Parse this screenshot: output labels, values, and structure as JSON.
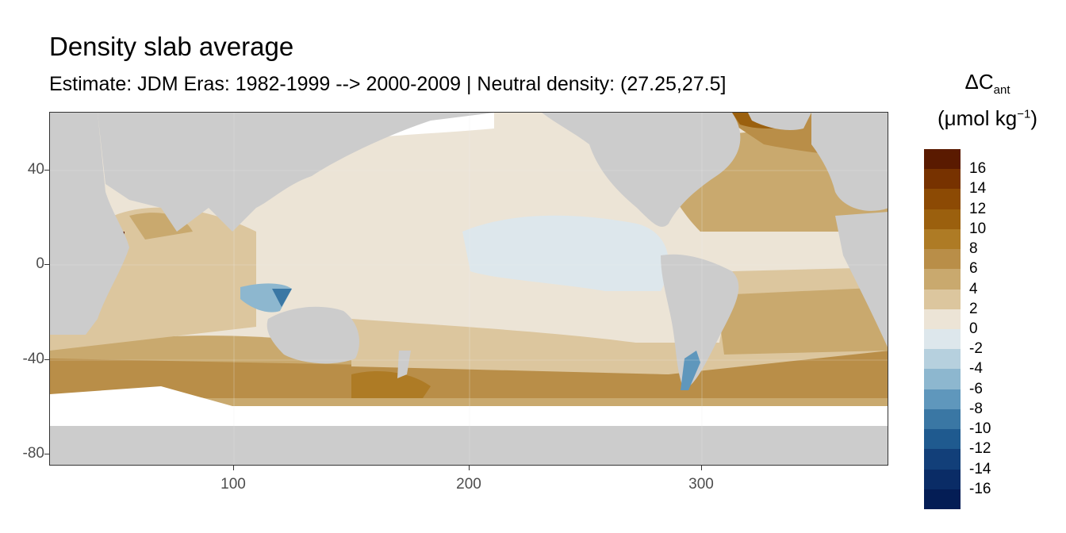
{
  "title": "Density slab average",
  "subtitle": "Estimate: JDM Eras: 1982-1999 --> 2000-2009 | Neutral density: (27.25,27.5]",
  "legend": {
    "title_main": "ΔC",
    "title_sub": "ant",
    "unit_prefix": "(μmol kg",
    "unit_sup": "−1",
    "unit_suffix": ")",
    "labels": [
      "16",
      "14",
      "12",
      "10",
      "8",
      "6",
      "4",
      "2",
      "0",
      "-2",
      "-4",
      "-6",
      "-8",
      "-10",
      "-12",
      "-14",
      "-16"
    ],
    "colors": [
      "#5a1a00",
      "#773200",
      "#8c4a04",
      "#9b600e",
      "#ae7b25",
      "#b98e48",
      "#c9a96e",
      "#dcc69e",
      "#ece4d6",
      "#dde7ec",
      "#b6d0de",
      "#8db7cf",
      "#5f97bc",
      "#3a77a4",
      "#1f5a8f",
      "#123f79",
      "#0a2c66",
      "#041d55"
    ]
  },
  "axes": {
    "y_ticks": [
      "40",
      "0",
      "-40",
      "-80"
    ],
    "x_ticks": [
      "100",
      "200",
      "300"
    ]
  },
  "colors": {
    "land": "#cccccc",
    "no_data": "#ffffff",
    "near_zero_pos": "#ece4d6",
    "near_zero_neg": "#dde7ec"
  }
}
